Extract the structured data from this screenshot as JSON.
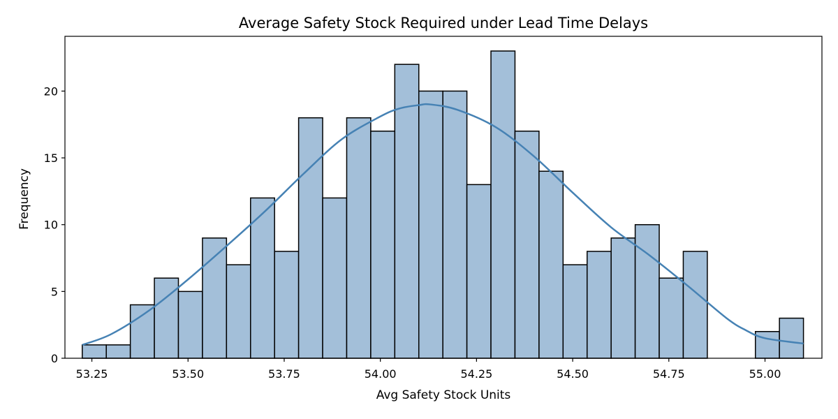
{
  "chart_data": {
    "type": "bar",
    "title": "Average Safety Stock Required under Lead Time Delays",
    "xlabel": "Avg Safety Stock Units",
    "ylabel": "Frequency",
    "xlim": [
      53.18,
      55.148
    ],
    "ylim": [
      0,
      24.1
    ],
    "x_ticks": [
      53.25,
      53.5,
      53.75,
      54.0,
      54.25,
      54.5,
      54.75,
      55.0
    ],
    "x_tick_labels": [
      "53.25",
      "53.50",
      "53.75",
      "54.00",
      "54.25",
      "54.50",
      "54.75",
      "55.00"
    ],
    "y_ticks": [
      0,
      5,
      10,
      15,
      20
    ],
    "y_tick_labels": [
      "0",
      "5",
      "10",
      "15",
      "20"
    ],
    "bin_start": 53.225,
    "bin_width": 0.0625,
    "bins": [
      {
        "x0": 53.225,
        "count": 1
      },
      {
        "x0": 53.2875,
        "count": 1
      },
      {
        "x0": 53.35,
        "count": 4
      },
      {
        "x0": 53.4125,
        "count": 6
      },
      {
        "x0": 53.475,
        "count": 5
      },
      {
        "x0": 53.5375,
        "count": 9
      },
      {
        "x0": 53.6,
        "count": 7
      },
      {
        "x0": 53.6625,
        "count": 12
      },
      {
        "x0": 53.725,
        "count": 8
      },
      {
        "x0": 53.7875,
        "count": 18
      },
      {
        "x0": 53.85,
        "count": 12
      },
      {
        "x0": 53.9125,
        "count": 18
      },
      {
        "x0": 53.975,
        "count": 17
      },
      {
        "x0": 54.0375,
        "count": 22
      },
      {
        "x0": 54.1,
        "count": 20
      },
      {
        "x0": 54.1625,
        "count": 20
      },
      {
        "x0": 54.225,
        "count": 13
      },
      {
        "x0": 54.2875,
        "count": 23
      },
      {
        "x0": 54.35,
        "count": 17
      },
      {
        "x0": 54.4125,
        "count": 14
      },
      {
        "x0": 54.475,
        "count": 7
      },
      {
        "x0": 54.5375,
        "count": 8
      },
      {
        "x0": 54.6,
        "count": 9
      },
      {
        "x0": 54.6625,
        "count": 10
      },
      {
        "x0": 54.725,
        "count": 6
      },
      {
        "x0": 54.7875,
        "count": 8
      },
      {
        "x0": 54.85,
        "count": 0
      },
      {
        "x0": 54.9125,
        "count": 0
      },
      {
        "x0": 54.975,
        "count": 2
      },
      {
        "x0": 55.0375,
        "count": 3
      }
    ],
    "kde": {
      "x": [
        53.225,
        53.3,
        53.4,
        53.5,
        53.6,
        53.7,
        53.8,
        53.9,
        54.0,
        54.05,
        54.1,
        54.13,
        54.2,
        54.3,
        54.4,
        54.5,
        54.6,
        54.7,
        54.8,
        54.9,
        54.95,
        55.0,
        55.1
      ],
      "y": [
        1.0,
        1.8,
        3.6,
        5.9,
        8.4,
        11.0,
        13.8,
        16.4,
        18.1,
        18.7,
        18.95,
        19.0,
        18.6,
        17.3,
        15.1,
        12.4,
        9.8,
        7.7,
        5.4,
        3.0,
        2.1,
        1.5,
        1.1
      ]
    },
    "colors": {
      "bar_fill": "#a3bfd9",
      "bar_edge": "#000000",
      "kde_line": "#4682b4"
    },
    "grid": false,
    "legend": "none"
  }
}
